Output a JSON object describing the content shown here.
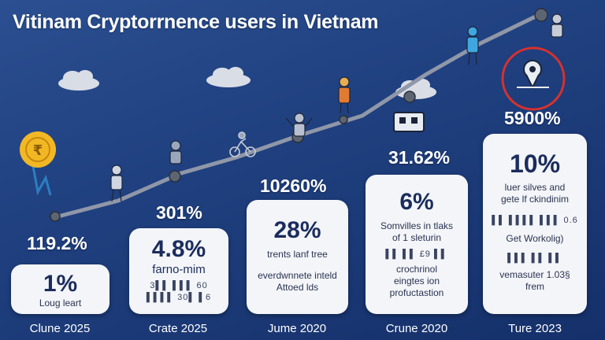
{
  "title": "Vitinam Cryptorrnence users in Vietnam",
  "colors": {
    "background": "#1f3f7e",
    "card": "#f3f5f9",
    "trend_line": "#8f97a8",
    "coin": "#f2b824",
    "alert_ring": "#d8312d"
  },
  "icons": [
    "coin-icon",
    "person-icon",
    "chart-node-icon",
    "location-pin-icon",
    "cloud-icon",
    "bicycle-icon",
    "building-icon"
  ],
  "percent_labels": {
    "p1": "119.2%",
    "p2": "301%",
    "p3": "10260%",
    "p4": "31.62%",
    "p5": "5900%"
  },
  "cards": {
    "c1": {
      "big": "1%",
      "line1": "Loug leart"
    },
    "c2": {
      "big": "4.8%",
      "line1": "farno-mim",
      "glyphs": "3▌▌ ▌▌▌  60",
      "glyphs2": "▌▌▌▌  30▌  ▌6"
    },
    "c3": {
      "big": "28%",
      "line1": "trents lanf tree",
      "line2": "everdwnnete inteld",
      "line3": "Attoed lds"
    },
    "c4": {
      "big": "6%",
      "line1": "Somvilles in tlaks",
      "line2": "of 1 sleturin",
      "glyphs": "▌▌  ▌▌  £9  ▌▌",
      "line3": "crochrinol",
      "line4": "eingtes ion",
      "line5": "profuctastion"
    },
    "c5": {
      "big": "10%",
      "line1": "luer silves and",
      "line2": "gete lf ckindinim",
      "glyphs": "▌▌ ▌▌▌▌ ▌▌▌  0.6",
      "line3": "Get Workolig)",
      "glyphs2": "▌▌▌ ▌▌ ▌▌",
      "line4": "vemasuter 1.03§",
      "line5": "frem"
    }
  },
  "dates": {
    "d1": "Clune 2025",
    "d2": "Crate 2025",
    "d3": "Jume 2020",
    "d4": "Crune 2020",
    "d5": "Ture 2023"
  }
}
